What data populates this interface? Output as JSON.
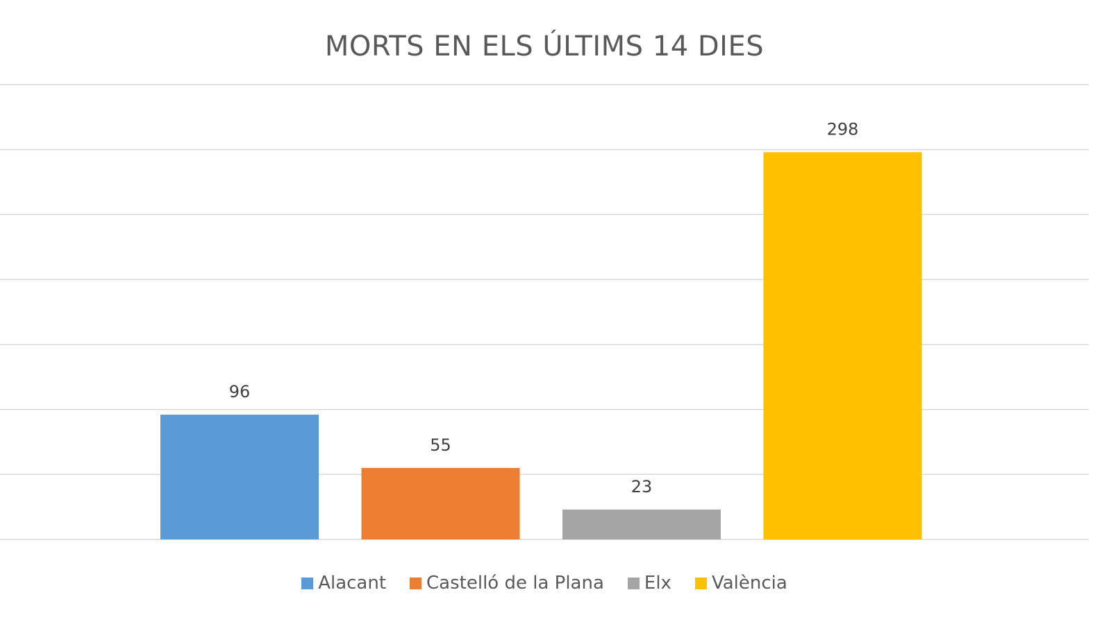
{
  "chart_data": {
    "type": "bar",
    "title": "MORTS EN ELS ÚLTIMS 14 DIES",
    "categories": [
      "Alacant",
      "Castelló de la Plana",
      "Elx",
      "València"
    ],
    "values": [
      96,
      55,
      23,
      298
    ],
    "colors": [
      "#5b9bd5",
      "#ed7d31",
      "#a5a5a5",
      "#ffc000"
    ],
    "ylim": [
      0,
      350
    ],
    "grid": true,
    "y_axis_labels": false,
    "data_labels": true,
    "legend": "bottom"
  }
}
